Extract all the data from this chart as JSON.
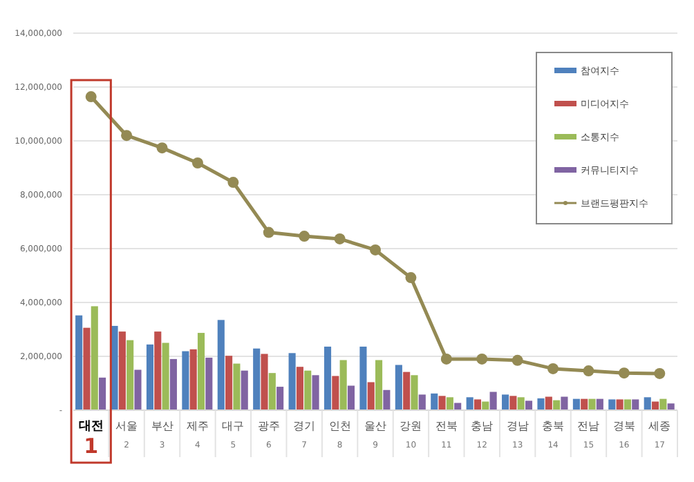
{
  "chart_data": {
    "type": "bar",
    "categories": [
      "대전\n1",
      "서울\n2",
      "부산\n3",
      "제주\n4",
      "대구\n5",
      "광주\n6",
      "경기\n7",
      "인천\n8",
      "울산\n9",
      "강원\n10",
      "전북\n11",
      "충남\n12",
      "경남\n13",
      "충북\n14",
      "전남\n15",
      "경북\n16",
      "세종\n17"
    ],
    "series": [
      {
        "name": "참여지수",
        "color": "#4f81bd",
        "values": [
          3520000,
          3130000,
          2440000,
          2190000,
          3350000,
          2290000,
          2120000,
          2360000,
          2360000,
          1680000,
          620000,
          480000,
          580000,
          440000,
          420000,
          400000,
          480000
        ]
      },
      {
        "name": "미디어지수",
        "color": "#c0504d",
        "values": [
          3060000,
          2920000,
          2920000,
          2260000,
          2020000,
          2090000,
          1610000,
          1270000,
          1040000,
          1420000,
          530000,
          400000,
          530000,
          500000,
          420000,
          400000,
          320000
        ]
      },
      {
        "name": "소통지수",
        "color": "#9bbb59",
        "values": [
          3860000,
          2600000,
          2500000,
          2870000,
          1730000,
          1380000,
          1470000,
          1860000,
          1860000,
          1300000,
          480000,
          320000,
          480000,
          370000,
          420000,
          400000,
          420000
        ]
      },
      {
        "name": "커뮤니티지수",
        "color": "#8064a2",
        "values": [
          1210000,
          1500000,
          1900000,
          1950000,
          1470000,
          870000,
          1300000,
          910000,
          750000,
          580000,
          270000,
          680000,
          350000,
          500000,
          420000,
          400000,
          250000
        ]
      },
      {
        "name": "브랜드평판지수",
        "type": "line",
        "color": "#948a54",
        "values": [
          11640000,
          10200000,
          9740000,
          9180000,
          8460000,
          6600000,
          6460000,
          6360000,
          5950000,
          4920000,
          1900000,
          1900000,
          1850000,
          1540000,
          1460000,
          1380000,
          1360000
        ]
      }
    ],
    "ylim": [
      0,
      14000000
    ],
    "yticks": [
      {
        "value": 0,
        "label": "-"
      },
      {
        "value": 2000000,
        "label": "2,000,000"
      },
      {
        "value": 4000000,
        "label": "4,000,000"
      },
      {
        "value": 6000000,
        "label": "6,000,000"
      },
      {
        "value": 8000000,
        "label": "8,000,000"
      },
      {
        "value": 10000000,
        "label": "10,000,000"
      },
      {
        "value": 12000000,
        "label": "12,000,000"
      },
      {
        "value": 14000000,
        "label": "14,000,000"
      }
    ],
    "grid": "y",
    "legend": "top right",
    "marker": "circle",
    "line_style": "solid"
  }
}
